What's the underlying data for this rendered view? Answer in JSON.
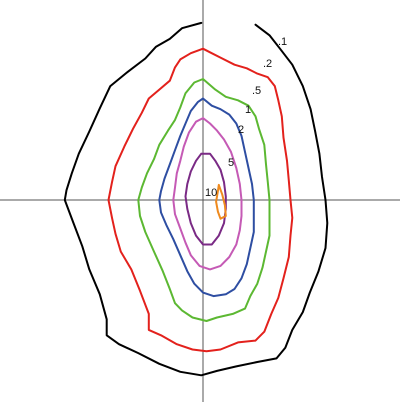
{
  "chart_data": {
    "type": "line",
    "grid": false,
    "axes": {
      "cross_at": [
        0,
        0
      ],
      "show_ticks": false
    },
    "xlim": [
      -1.0,
      1.0
    ],
    "ylim": [
      -1.0,
      1.0
    ],
    "series": [
      {
        "name": ".1",
        "color": "#000000",
        "points": [
          [
            -0.01,
            0.995
          ],
          [
            -0.12,
            0.965
          ],
          [
            -0.19,
            0.905
          ],
          [
            -0.27,
            0.86
          ],
          [
            -0.33,
            0.795
          ],
          [
            -0.43,
            0.72
          ],
          [
            -0.53,
            0.64
          ],
          [
            -0.59,
            0.515
          ],
          [
            -0.65,
            0.385
          ],
          [
            -0.71,
            0.26
          ],
          [
            -0.75,
            0.15
          ],
          [
            -0.78,
            0.055
          ],
          [
            -0.79,
            0.0
          ],
          [
            -0.74,
            -0.13
          ],
          [
            -0.69,
            -0.26
          ],
          [
            -0.65,
            -0.39
          ],
          [
            -0.59,
            -0.53
          ],
          [
            -0.55,
            -0.67
          ],
          [
            -0.55,
            -0.76
          ],
          [
            -0.48,
            -0.81
          ],
          [
            -0.37,
            -0.86
          ],
          [
            -0.25,
            -0.92
          ],
          [
            -0.13,
            -0.965
          ],
          [
            -0.01,
            -0.985
          ],
          [
            0.08,
            -0.96
          ],
          [
            0.19,
            -0.935
          ],
          [
            0.31,
            -0.91
          ],
          [
            0.42,
            -0.89
          ],
          [
            0.47,
            -0.83
          ],
          [
            0.51,
            -0.73
          ],
          [
            0.57,
            -0.63
          ],
          [
            0.61,
            -0.52
          ],
          [
            0.66,
            -0.4
          ],
          [
            0.7,
            -0.27
          ],
          [
            0.71,
            -0.13
          ],
          [
            0.7,
            0.0
          ],
          [
            0.68,
            0.13
          ],
          [
            0.665,
            0.26
          ],
          [
            0.64,
            0.39
          ],
          [
            0.615,
            0.51
          ],
          [
            0.57,
            0.64
          ],
          [
            0.51,
            0.76
          ],
          [
            0.44,
            0.85
          ],
          [
            0.38,
            0.925
          ],
          [
            0.3,
            0.985
          ]
        ]
      },
      {
        "name": ".2",
        "color": "#e3211c",
        "points": [
          [
            0.0,
            0.85
          ],
          [
            -0.07,
            0.825
          ],
          [
            -0.13,
            0.79
          ],
          [
            -0.16,
            0.745
          ],
          [
            -0.19,
            0.67
          ],
          [
            -0.25,
            0.62
          ],
          [
            -0.31,
            0.57
          ],
          [
            -0.35,
            0.49
          ],
          [
            -0.4,
            0.4
          ],
          [
            -0.45,
            0.3
          ],
          [
            -0.5,
            0.19
          ],
          [
            -0.52,
            0.1
          ],
          [
            -0.54,
            0.0
          ],
          [
            -0.52,
            -0.1
          ],
          [
            -0.5,
            -0.19
          ],
          [
            -0.47,
            -0.29
          ],
          [
            -0.41,
            -0.39
          ],
          [
            -0.36,
            -0.51
          ],
          [
            -0.31,
            -0.64
          ],
          [
            -0.31,
            -0.73
          ],
          [
            -0.24,
            -0.76
          ],
          [
            -0.15,
            -0.81
          ],
          [
            -0.06,
            -0.84
          ],
          [
            0.02,
            -0.85
          ],
          [
            0.1,
            -0.84
          ],
          [
            0.2,
            -0.8
          ],
          [
            0.3,
            -0.79
          ],
          [
            0.35,
            -0.74
          ],
          [
            0.39,
            -0.64
          ],
          [
            0.43,
            -0.55
          ],
          [
            0.46,
            -0.44
          ],
          [
            0.49,
            -0.32
          ],
          [
            0.5,
            -0.2
          ],
          [
            0.51,
            -0.1
          ],
          [
            0.5,
            0.0
          ],
          [
            0.49,
            0.11
          ],
          [
            0.48,
            0.22
          ],
          [
            0.46,
            0.35
          ],
          [
            0.45,
            0.47
          ],
          [
            0.43,
            0.56
          ],
          [
            0.41,
            0.64
          ],
          [
            0.37,
            0.69
          ],
          [
            0.31,
            0.71
          ],
          [
            0.25,
            0.74
          ],
          [
            0.18,
            0.76
          ],
          [
            0.1,
            0.8
          ],
          [
            0.04,
            0.83
          ],
          [
            0.0,
            0.85
          ]
        ]
      },
      {
        "name": ".5",
        "color": "#5cb832",
        "points": [
          [
            0.0,
            0.68
          ],
          [
            -0.05,
            0.66
          ],
          [
            -0.1,
            0.6
          ],
          [
            -0.13,
            0.52
          ],
          [
            -0.16,
            0.45
          ],
          [
            -0.2,
            0.39
          ],
          [
            -0.25,
            0.31
          ],
          [
            -0.28,
            0.23
          ],
          [
            -0.32,
            0.15
          ],
          [
            -0.35,
            0.07
          ],
          [
            -0.37,
            0.0
          ],
          [
            -0.36,
            -0.09
          ],
          [
            -0.33,
            -0.18
          ],
          [
            -0.28,
            -0.29
          ],
          [
            -0.23,
            -0.4
          ],
          [
            -0.19,
            -0.5
          ],
          [
            -0.16,
            -0.58
          ],
          [
            -0.12,
            -0.62
          ],
          [
            -0.06,
            -0.66
          ],
          [
            0.02,
            -0.68
          ],
          [
            0.08,
            -0.66
          ],
          [
            0.17,
            -0.64
          ],
          [
            0.24,
            -0.61
          ],
          [
            0.27,
            -0.54
          ],
          [
            0.31,
            -0.47
          ],
          [
            0.34,
            -0.38
          ],
          [
            0.36,
            -0.29
          ],
          [
            0.38,
            -0.2
          ],
          [
            0.38,
            -0.1
          ],
          [
            0.38,
            0.0
          ],
          [
            0.37,
            0.1
          ],
          [
            0.36,
            0.2
          ],
          [
            0.35,
            0.31
          ],
          [
            0.32,
            0.4
          ],
          [
            0.3,
            0.47
          ],
          [
            0.26,
            0.53
          ],
          [
            0.2,
            0.56
          ],
          [
            0.13,
            0.58
          ],
          [
            0.07,
            0.62
          ],
          [
            0.0,
            0.68
          ]
        ]
      },
      {
        "name": "1",
        "color": "#2e4ea2",
        "points": [
          [
            0.0,
            0.57
          ],
          [
            -0.03,
            0.55
          ],
          [
            -0.07,
            0.5
          ],
          [
            -0.1,
            0.43
          ],
          [
            -0.13,
            0.36
          ],
          [
            -0.16,
            0.28
          ],
          [
            -0.19,
            0.2
          ],
          [
            -0.22,
            0.12
          ],
          [
            -0.24,
            0.05
          ],
          [
            -0.25,
            0.0
          ],
          [
            -0.24,
            -0.07
          ],
          [
            -0.21,
            -0.14
          ],
          [
            -0.17,
            -0.22
          ],
          [
            -0.13,
            -0.31
          ],
          [
            -0.09,
            -0.4
          ],
          [
            -0.05,
            -0.47
          ],
          [
            0.0,
            -0.52
          ],
          [
            0.06,
            -0.54
          ],
          [
            0.13,
            -0.53
          ],
          [
            0.18,
            -0.5
          ],
          [
            0.22,
            -0.44
          ],
          [
            0.25,
            -0.36
          ],
          [
            0.27,
            -0.27
          ],
          [
            0.29,
            -0.18
          ],
          [
            0.29,
            -0.09
          ],
          [
            0.29,
            0.0
          ],
          [
            0.28,
            0.09
          ],
          [
            0.26,
            0.18
          ],
          [
            0.24,
            0.27
          ],
          [
            0.22,
            0.36
          ],
          [
            0.19,
            0.43
          ],
          [
            0.15,
            0.48
          ],
          [
            0.1,
            0.51
          ],
          [
            0.05,
            0.53
          ],
          [
            0.0,
            0.57
          ]
        ]
      },
      {
        "name": "2",
        "color": "#c55ab5",
        "points": [
          [
            0.0,
            0.46
          ],
          [
            -0.04,
            0.44
          ],
          [
            -0.08,
            0.38
          ],
          [
            -0.11,
            0.3
          ],
          [
            -0.13,
            0.22
          ],
          [
            -0.15,
            0.15
          ],
          [
            -0.16,
            0.07
          ],
          [
            -0.17,
            0.0
          ],
          [
            -0.16,
            -0.08
          ],
          [
            -0.13,
            -0.16
          ],
          [
            -0.1,
            -0.24
          ],
          [
            -0.07,
            -0.31
          ],
          [
            -0.02,
            -0.37
          ],
          [
            0.04,
            -0.39
          ],
          [
            0.1,
            -0.37
          ],
          [
            0.15,
            -0.32
          ],
          [
            0.19,
            -0.25
          ],
          [
            0.21,
            -0.17
          ],
          [
            0.22,
            -0.09
          ],
          [
            0.22,
            0.0
          ],
          [
            0.21,
            0.09
          ],
          [
            0.19,
            0.18
          ],
          [
            0.16,
            0.27
          ],
          [
            0.12,
            0.34
          ],
          [
            0.08,
            0.39
          ],
          [
            0.04,
            0.43
          ],
          [
            0.0,
            0.46
          ]
        ]
      },
      {
        "name": "5",
        "color": "#7a2a85",
        "points": [
          [
            -0.01,
            0.26
          ],
          [
            -0.04,
            0.22
          ],
          [
            -0.07,
            0.16
          ],
          [
            -0.09,
            0.09
          ],
          [
            -0.1,
            0.02
          ],
          [
            -0.09,
            -0.05
          ],
          [
            -0.07,
            -0.13
          ],
          [
            -0.04,
            -0.2
          ],
          [
            0.0,
            -0.25
          ],
          [
            0.05,
            -0.25
          ],
          [
            0.09,
            -0.2
          ],
          [
            0.12,
            -0.13
          ],
          [
            0.13,
            -0.05
          ],
          [
            0.13,
            0.02
          ],
          [
            0.12,
            0.1
          ],
          [
            0.1,
            0.17
          ],
          [
            0.07,
            0.22
          ],
          [
            0.04,
            0.26
          ],
          [
            -0.01,
            0.26
          ]
        ]
      },
      {
        "name": "10",
        "color": "#ef8a1e",
        "points": [
          [
            0.09,
            0.085
          ],
          [
            0.11,
            0.03
          ],
          [
            0.125,
            -0.03
          ],
          [
            0.13,
            -0.09
          ],
          [
            0.1,
            -0.105
          ],
          [
            0.085,
            -0.065
          ],
          [
            0.075,
            -0.01
          ],
          [
            0.085,
            0.05
          ],
          [
            0.09,
            0.085
          ]
        ]
      }
    ],
    "contour_labels": [
      ".1",
      ".2",
      ".5",
      "1",
      "2",
      "5",
      "10"
    ]
  }
}
